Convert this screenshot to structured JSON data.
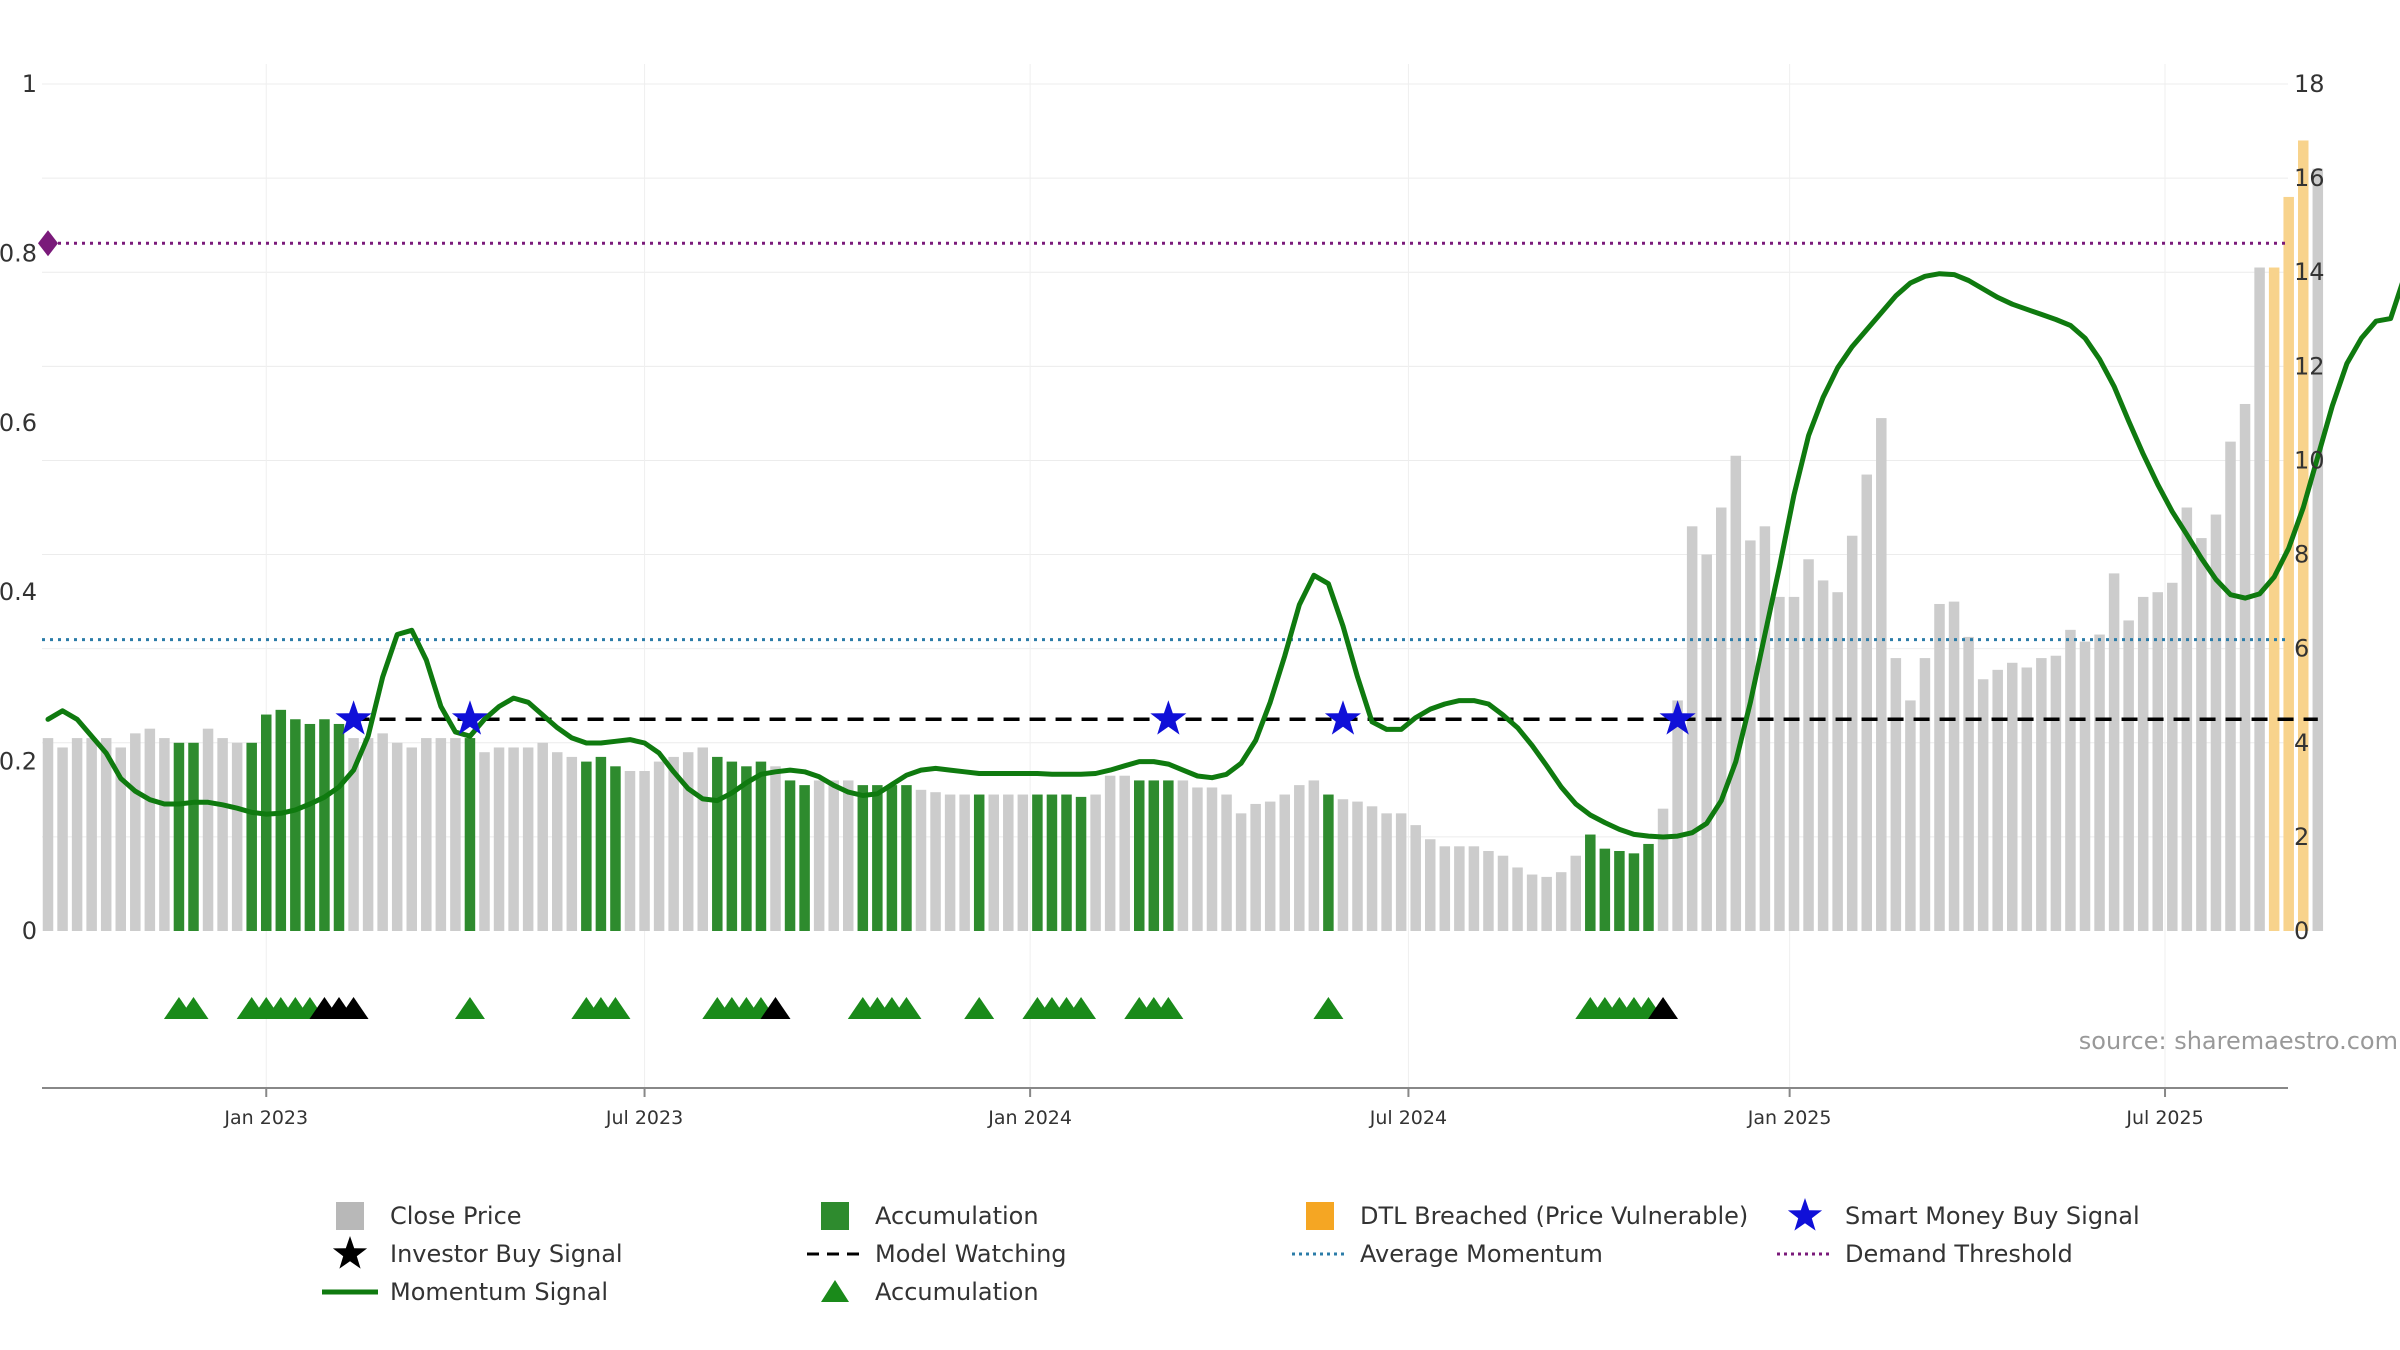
{
  "chart_data": {
    "type": "bar",
    "source_text": "source: sharemaestro.com",
    "left_axis": {
      "ticks": [
        "0",
        "0.2",
        "0.4",
        "0.6",
        "0.8",
        "1"
      ],
      "ylim": [
        0,
        1
      ]
    },
    "right_axis": {
      "ticks": [
        "0",
        "2",
        "4",
        "6",
        "8",
        "10",
        "12",
        "14",
        "16",
        "18"
      ],
      "ylim": [
        0,
        18
      ]
    },
    "x_ticks": [
      {
        "label": "Jan 2023",
        "week": 15
      },
      {
        "label": "Jul 2023",
        "week": 41
      },
      {
        "label": "Jan 2024",
        "week": 67.5
      },
      {
        "label": "Jul 2024",
        "week": 93.5
      },
      {
        "label": "Jan 2025",
        "week": 119.7
      },
      {
        "label": "Jul 2025",
        "week": 145.5
      }
    ],
    "close_price": [
      4.1,
      3.9,
      4.1,
      4.1,
      4.1,
      3.9,
      4.2,
      4.3,
      4.1,
      4.0,
      4.0,
      4.3,
      4.1,
      4.0,
      4.0,
      4.6,
      4.7,
      4.5,
      4.4,
      4.5,
      4.4,
      4.1,
      4.1,
      4.2,
      4.0,
      3.9,
      4.1,
      4.1,
      4.1,
      4.1,
      3.8,
      3.9,
      3.9,
      3.9,
      4.0,
      3.8,
      3.7,
      3.6,
      3.7,
      3.5,
      3.4,
      3.4,
      3.6,
      3.7,
      3.8,
      3.9,
      3.7,
      3.6,
      3.5,
      3.6,
      3.5,
      3.2,
      3.1,
      3.2,
      3.2,
      3.2,
      3.1,
      3.1,
      3.1,
      3.1,
      3.0,
      2.95,
      2.9,
      2.9,
      2.9,
      2.9,
      2.9,
      2.9,
      2.9,
      2.9,
      2.9,
      2.85,
      2.9,
      3.3,
      3.3,
      3.2,
      3.2,
      3.2,
      3.2,
      3.05,
      3.05,
      2.9,
      2.5,
      2.7,
      2.75,
      2.9,
      3.1,
      3.2,
      2.9,
      2.8,
      2.75,
      2.65,
      2.5,
      2.5,
      2.25,
      1.95,
      1.8,
      1.8,
      1.8,
      1.7,
      1.6,
      1.35,
      1.2,
      1.15,
      1.25,
      1.6,
      2.05,
      1.75,
      1.7,
      1.65,
      1.85,
      2.6,
      4.9,
      8.6,
      8.0,
      9.0,
      10.1,
      8.3,
      8.6,
      7.1,
      7.1,
      7.9,
      7.45,
      7.2,
      8.4,
      9.7,
      10.9,
      5.8,
      4.9,
      5.8,
      6.95,
      7.0,
      6.25,
      5.35,
      5.55,
      5.7,
      5.6,
      5.8,
      5.85,
      6.4,
      6.15,
      6.3,
      7.6,
      6.6,
      7.1,
      7.2,
      7.4,
      9.0,
      8.35,
      8.85,
      10.4,
      11.2,
      14.1,
      14.1,
      15.6,
      16.8,
      16.2
    ],
    "accumulation_bars": [
      9,
      10,
      14,
      15,
      16,
      17,
      18,
      19,
      20,
      29,
      37,
      38,
      39,
      46,
      47,
      48,
      49,
      51,
      52,
      56,
      57,
      58,
      59,
      64,
      68,
      69,
      70,
      71,
      75,
      76,
      77,
      88,
      106,
      107,
      108,
      109,
      110
    ],
    "dtl_breached_bars": [
      153,
      154,
      155
    ],
    "momentum_signal": [
      0.25,
      0.26,
      0.25,
      0.23,
      0.21,
      0.18,
      0.165,
      0.155,
      0.15,
      0.15,
      0.152,
      0.152,
      0.149,
      0.145,
      0.14,
      0.138,
      0.139,
      0.143,
      0.15,
      0.158,
      0.17,
      0.19,
      0.23,
      0.3,
      0.35,
      0.355,
      0.32,
      0.265,
      0.235,
      0.23,
      0.25,
      0.265,
      0.275,
      0.27,
      0.255,
      0.24,
      0.228,
      0.222,
      0.222,
      0.224,
      0.226,
      0.222,
      0.21,
      0.188,
      0.168,
      0.156,
      0.154,
      0.163,
      0.175,
      0.185,
      0.188,
      0.19,
      0.188,
      0.182,
      0.172,
      0.164,
      0.16,
      0.162,
      0.173,
      0.184,
      0.19,
      0.192,
      0.19,
      0.188,
      0.186,
      0.186,
      0.186,
      0.186,
      0.186,
      0.185,
      0.185,
      0.185,
      0.186,
      0.19,
      0.195,
      0.2,
      0.2,
      0.197,
      0.19,
      0.183,
      0.181,
      0.185,
      0.198,
      0.225,
      0.27,
      0.325,
      0.385,
      0.42,
      0.41,
      0.36,
      0.3,
      0.247,
      0.238,
      0.238,
      0.252,
      0.262,
      0.268,
      0.272,
      0.272,
      0.268,
      0.255,
      0.24,
      0.219,
      0.195,
      0.17,
      0.15,
      0.137,
      0.128,
      0.12,
      0.114,
      0.112,
      0.111,
      0.112,
      0.116,
      0.127,
      0.154,
      0.2,
      0.27,
      0.35,
      0.43,
      0.515,
      0.585,
      0.63,
      0.665,
      0.69,
      0.71,
      0.73,
      0.75,
      0.765,
      0.773,
      0.776,
      0.775,
      0.768,
      0.758,
      0.748,
      0.74,
      0.734,
      0.728,
      0.722,
      0.715,
      0.7,
      0.675,
      0.643,
      0.602,
      0.563,
      0.527,
      0.495,
      0.468,
      0.44,
      0.415,
      0.397,
      0.393,
      0.398,
      0.418,
      0.452,
      0.5,
      0.56,
      0.62,
      0.67,
      0.7,
      0.72,
      0.723,
      0.775,
      0.765,
      0.772,
      0.782
    ],
    "investor_buy_markers": [
      19,
      20,
      21,
      50,
      111
    ],
    "accumulation_markers": [
      9,
      10,
      14,
      15,
      16,
      17,
      18,
      29,
      37,
      38,
      39,
      46,
      47,
      48,
      49,
      56,
      57,
      58,
      59,
      64,
      68,
      69,
      70,
      71,
      75,
      76,
      77,
      88,
      106,
      107,
      108,
      109,
      110
    ],
    "smart_money_signals": [
      21,
      29,
      77,
      89,
      112
    ],
    "model_watching_level": 0.25,
    "average_momentum_level": 0.344,
    "demand_threshold_level": 0.812,
    "colors": {
      "close_price": "#cccccc",
      "accumulation": "#2e8b2e",
      "dtl_breached": "#f8d38c",
      "momentum": "#0f7a0f",
      "average_momentum": "#2b7ca8",
      "demand_threshold": "#7a1a7a",
      "smart_money": "#1010d8",
      "investor_buy": "#000000",
      "accumulation_marker": "#1a8a1a"
    }
  },
  "legend": {
    "items": [
      {
        "label": "Close Price",
        "symbol": "square-gray"
      },
      {
        "label": "Accumulation",
        "symbol": "square-green"
      },
      {
        "label": "DTL Breached (Price Vulnerable)",
        "symbol": "square-orange"
      },
      {
        "label": "Smart Money Buy Signal",
        "symbol": "star-blue"
      },
      {
        "label": "Investor Buy Signal",
        "symbol": "star-black"
      },
      {
        "label": "Model Watching",
        "symbol": "dashed-black"
      },
      {
        "label": "Average Momentum",
        "symbol": "dotted-blue"
      },
      {
        "label": "Demand Threshold",
        "symbol": "dotted-purple"
      },
      {
        "label": "Momentum Signal",
        "symbol": "line-green"
      },
      {
        "label": "Accumulation",
        "symbol": "triangle-green"
      }
    ]
  }
}
